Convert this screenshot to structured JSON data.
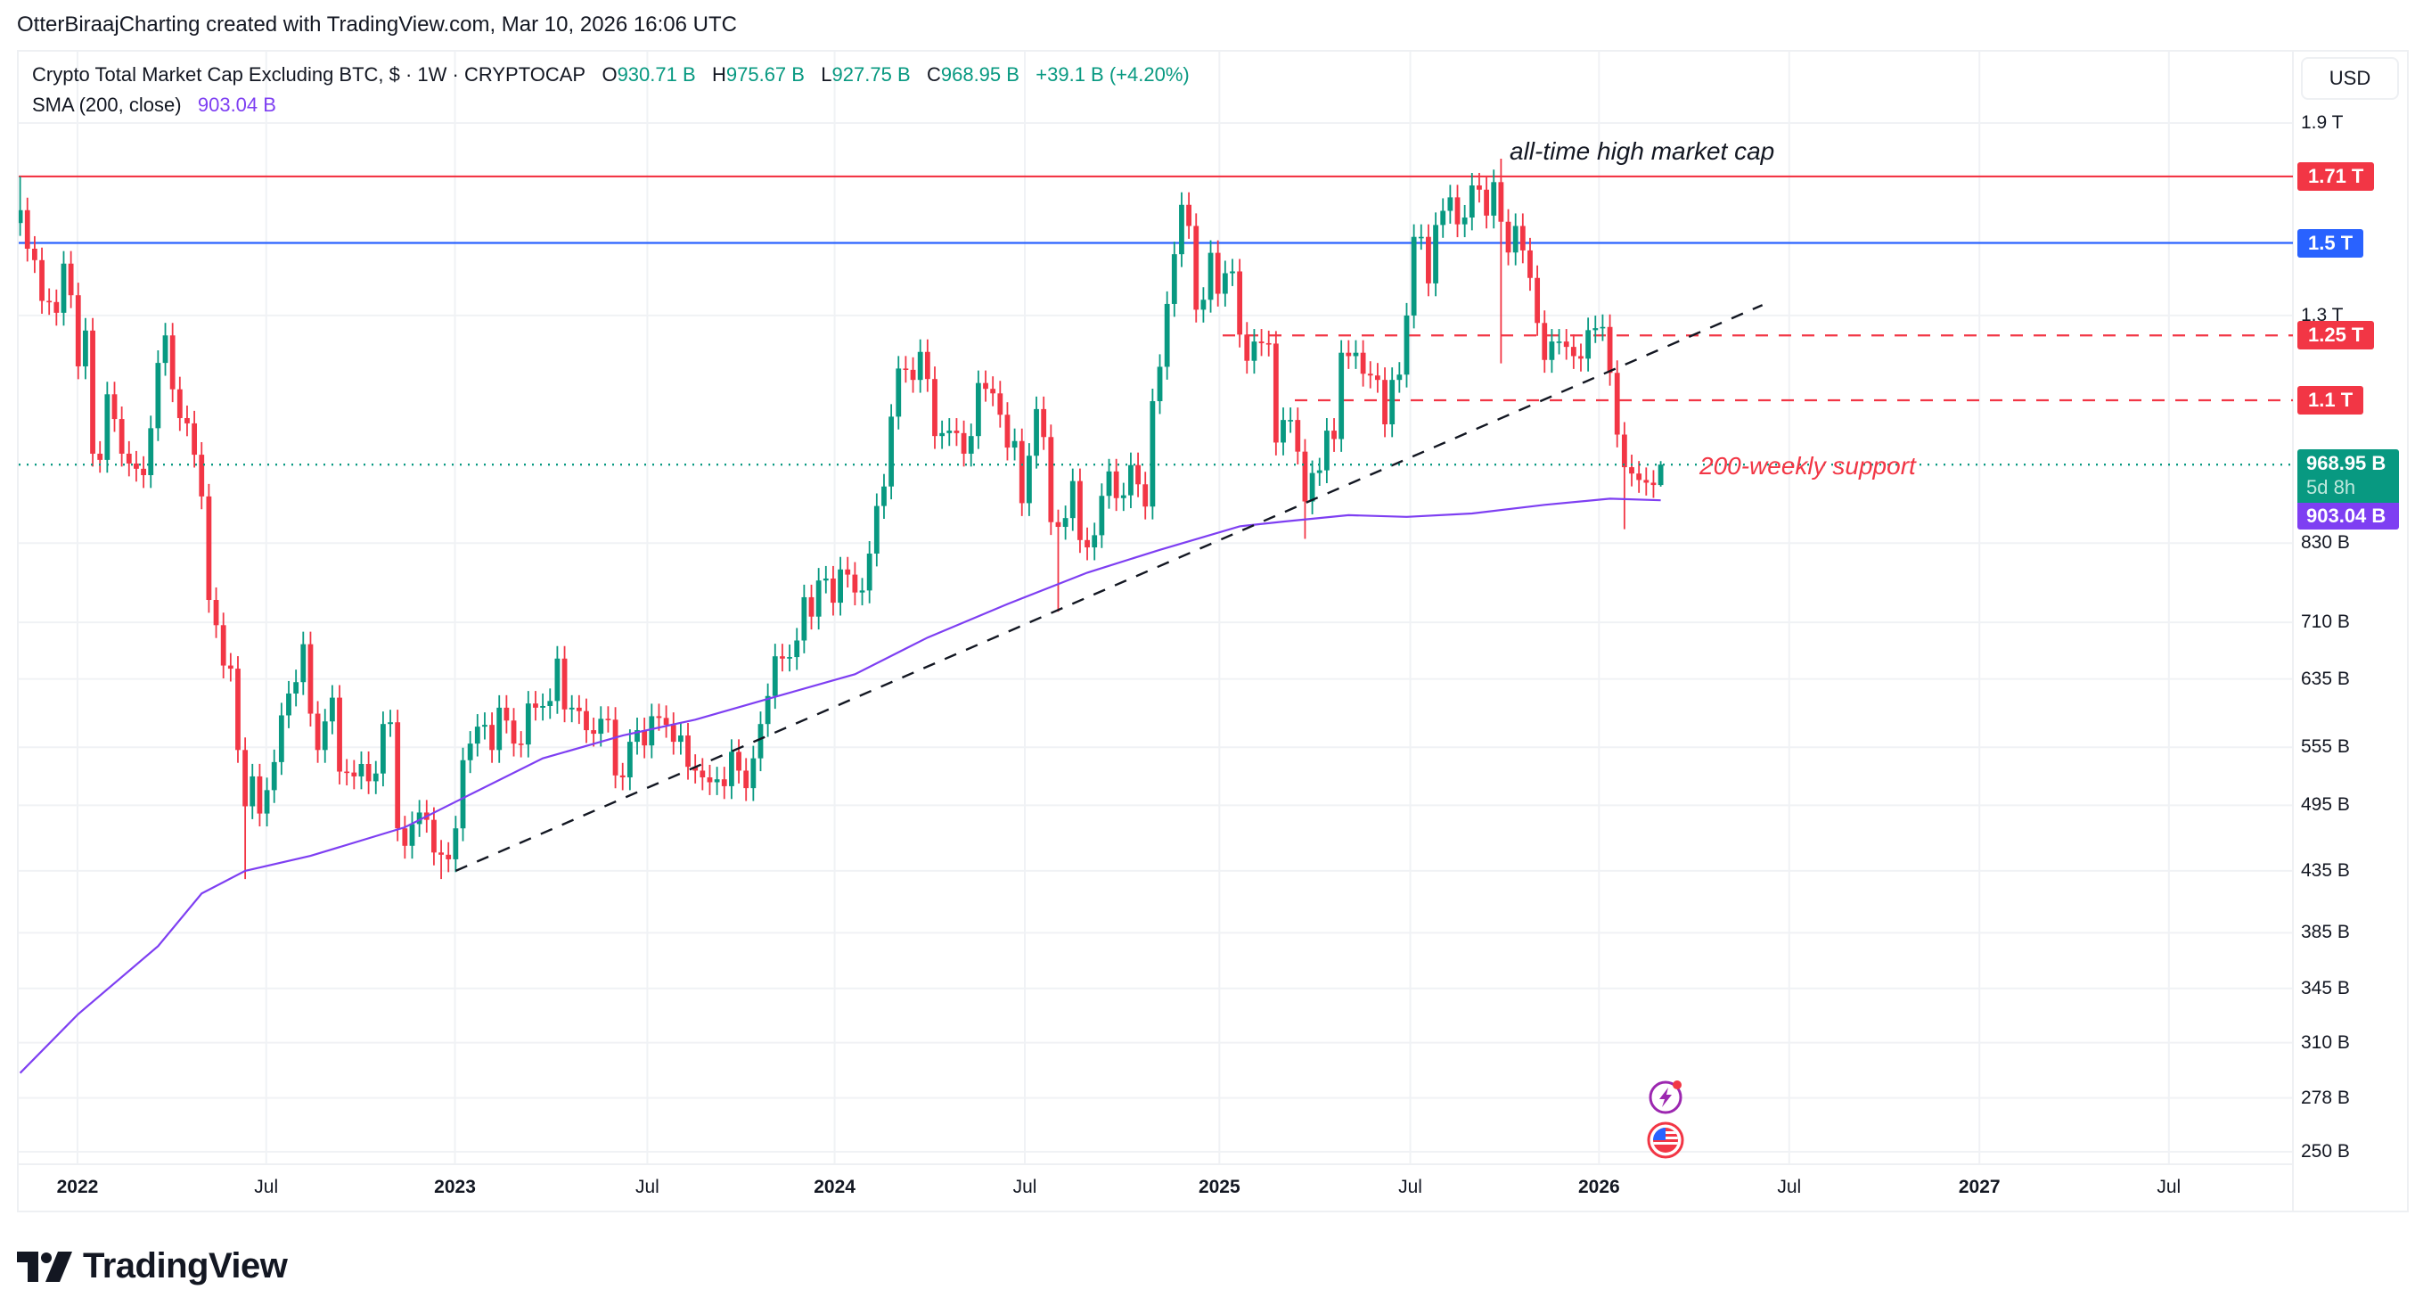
{
  "header": {
    "attribution": "OtterBiraajCharting created with TradingView.com, Mar 10, 2026 16:06 UTC"
  },
  "legend": {
    "symbol": "Crypto Total Market Cap Excluding BTC, $ · 1W · CRYPTOCAP",
    "o_label": "O",
    "o": "930.71 B",
    "h_label": "H",
    "h": "975.67 B",
    "l_label": "L",
    "l": "927.75 B",
    "c_label": "C",
    "c": "968.95 B",
    "change": "+39.1 B (+4.20%)",
    "sma_label": "SMA (200, close)",
    "sma_value": "903.04 B"
  },
  "price_axis": {
    "currency": "USD",
    "last_price": "968.95 B",
    "countdown": "5d 8h",
    "sma_price": "903.04 B"
  },
  "annotations": {
    "ath": "all-time high market cap",
    "support": "200-weekly support"
  },
  "branding": {
    "logo_text": "TradingView"
  },
  "events": [
    {
      "icon": "lightning-icon"
    },
    {
      "icon": "us-flag-icon"
    }
  ],
  "colors": {
    "up": "#089981",
    "down": "#f23645",
    "sma": "#7e3ff2",
    "blue": "#2962ff",
    "trend": "#131722"
  },
  "chart_data": {
    "type": "candlestick",
    "interval": "1W",
    "scale": "log",
    "grid": true,
    "yticks": [
      {
        "value": 1900,
        "label": "1.9 T"
      },
      {
        "value": 1300,
        "label": "1.3 T"
      },
      {
        "value": 830,
        "label": "830 B"
      },
      {
        "value": 710,
        "label": "710 B"
      },
      {
        "value": 635,
        "label": "635 B"
      },
      {
        "value": 555,
        "label": "555 B"
      },
      {
        "value": 495,
        "label": "495 B"
      },
      {
        "value": 435,
        "label": "435 B"
      },
      {
        "value": 385,
        "label": "385 B"
      },
      {
        "value": 345,
        "label": "345 B"
      },
      {
        "value": 310,
        "label": "310 B"
      },
      {
        "value": 278,
        "label": "278 B"
      },
      {
        "value": 250,
        "label": "250 B"
      }
    ],
    "xticks": [
      "2022",
      "Jul",
      "2023",
      "Jul",
      "2024",
      "Jul",
      "2025",
      "Jul",
      "2026",
      "Jul",
      "2027",
      "Jul"
    ],
    "closes": [
      1600,
      1483,
      1450,
      1338,
      1335,
      1307,
      1440,
      1353,
      1176,
      1262,
      990,
      978,
      1113,
      1060,
      990,
      971,
      961,
      949,
      1041,
      1184,
      1250,
      1124,
      1062,
      1051,
      988,
      910,
      742,
      706,
      652,
      648,
      552,
      494,
      524,
      487,
      510,
      539,
      591,
      617,
      631,
      680,
      593,
      552,
      584,
      612,
      529,
      528,
      524,
      537,
      519,
      527,
      581,
      583,
      473,
      457,
      477,
      488,
      481,
      451,
      449,
      445,
      473,
      541,
      559,
      578,
      580,
      552,
      600,
      585,
      559,
      558,
      605,
      600,
      602,
      608,
      661,
      598,
      600,
      596,
      574,
      570,
      587,
      586,
      525,
      523,
      561,
      574,
      557,
      590,
      588,
      580,
      561,
      568,
      534,
      530,
      523,
      518,
      521,
      514,
      550,
      530,
      512,
      543,
      581,
      614,
      664,
      661,
      663,
      685,
      746,
      718,
      771,
      774,
      738,
      788,
      780,
      753,
      756,
      813,
      893,
      928,
      1065,
      1171,
      1168,
      1145,
      1210,
      1147,
      1025,
      1031,
      1036,
      1031,
      990,
      1025,
      1138,
      1125,
      1115,
      1069,
      1002,
      1015,
      898,
      986,
      1081,
      1023,
      865,
      857,
      872,
      938,
      835,
      823,
      843,
      911,
      956,
      907,
      912,
      968,
      932,
      892,
      1098,
      1175,
      1330,
      1467,
      1617,
      1551,
      1315,
      1341,
      1471,
      1357,
      1413,
      1418,
      1252,
      1189,
      1235,
      1231,
      1230,
      1012,
      1058,
      1058,
      994,
      901,
      953,
      958,
      1036,
      1019,
      1208,
      1200,
      1208,
      1159,
      1155,
      1145,
      1049,
      1145,
      1157,
      1300,
      1518,
      1518,
      1385,
      1554,
      1598,
      1641,
      1556,
      1577,
      1680,
      1666,
      1583,
      1691,
      1564,
      1472,
      1551,
      1478,
      1400,
      1281,
      1191,
      1235,
      1235,
      1222,
      1200,
      1194,
      1263,
      1268,
      1271,
      1161,
      1028,
      964,
      952,
      940,
      935,
      930.71,
      968.95
    ],
    "last_candle": {
      "open": 930.71,
      "high": 975.67,
      "low": 927.75,
      "close": 968.95
    },
    "notable_wicks": [
      {
        "index": 0,
        "high": 1710
      },
      {
        "index": 31,
        "low": 428
      },
      {
        "index": 58,
        "low": 428
      },
      {
        "index": 143,
        "low": 725
      },
      {
        "index": 177,
        "low": 837
      },
      {
        "index": 204,
        "high": 1771,
        "low": 1183
      },
      {
        "index": 221,
        "low": 853
      }
    ],
    "sma_200": [
      [
        0,
        292
      ],
      [
        8,
        328
      ],
      [
        19,
        375
      ],
      [
        25,
        416
      ],
      [
        31,
        435
      ],
      [
        40,
        448
      ],
      [
        53,
        474
      ],
      [
        61,
        502
      ],
      [
        72,
        543
      ],
      [
        83,
        568
      ],
      [
        93,
        586
      ],
      [
        104,
        613
      ],
      [
        115,
        641
      ],
      [
        125,
        689
      ],
      [
        136,
        736
      ],
      [
        147,
        783
      ],
      [
        157,
        819
      ],
      [
        168,
        858
      ],
      [
        174,
        866
      ],
      [
        183,
        877
      ],
      [
        191,
        874
      ],
      [
        200,
        880
      ],
      [
        210,
        895
      ],
      [
        219,
        906
      ],
      [
        226,
        903.04
      ]
    ],
    "levels": [
      {
        "value": 1710,
        "label": "1.71 T",
        "color": "#f23645",
        "style": "solid"
      },
      {
        "value": 1500,
        "label": "1.5 T",
        "color": "#2962ff",
        "style": "solid"
      },
      {
        "value": 1250,
        "label": "1.25 T",
        "color": "#f23645",
        "style": "dashed"
      },
      {
        "value": 1100,
        "label": "1.1 T",
        "color": "#f23645",
        "style": "dashed"
      }
    ],
    "current_price": 968.95,
    "sma_last": 903.04,
    "trendline": [
      {
        "index": 60,
        "value": 435
      },
      {
        "index": 240,
        "value": 1327
      }
    ]
  }
}
